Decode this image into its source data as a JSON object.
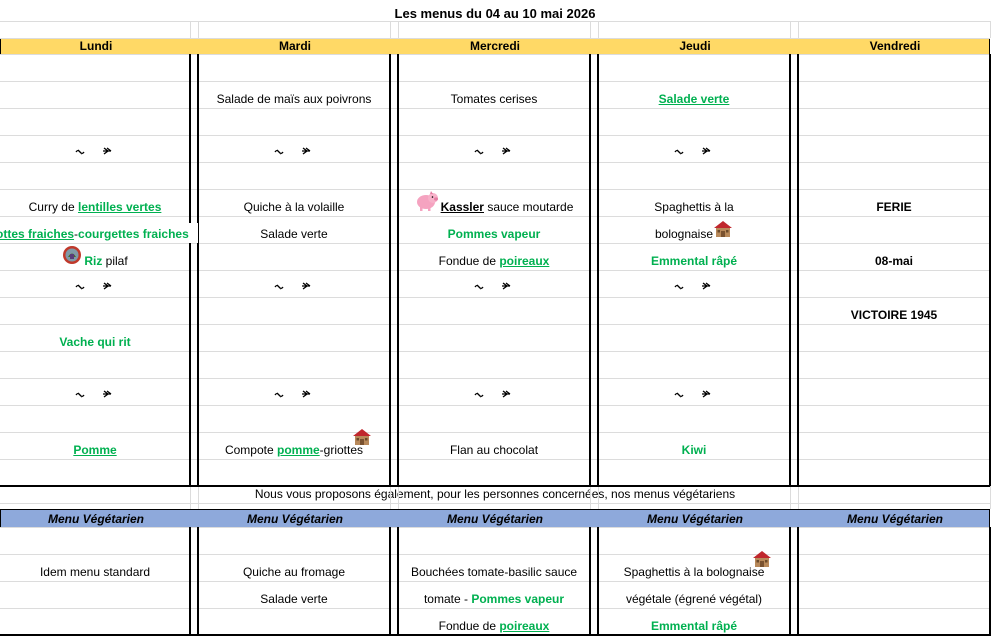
{
  "title": "Les menus du 04 au 10 mai 2026",
  "colors": {
    "header_yellow": "#ffd966",
    "header_blue": "#8ea9db",
    "green": "#00b050"
  },
  "days": [
    "Lundi",
    "Mardi",
    "Mercredi",
    "Jeudi",
    "Vendredi"
  ],
  "separator_icon": "wavy-dash-separator-icon",
  "main_menu": [
    {
      "day": "Lundi",
      "cells": [
        {
          "row": 3,
          "separator": true
        },
        {
          "row": 5,
          "segments": [
            {
              "text": "Curry de ",
              "style": "plain"
            },
            {
              "text": "lentilles vertes",
              "style": "greenu"
            }
          ]
        },
        {
          "row": 6,
          "wide": true,
          "segments": [
            {
              "text": "carottes fraiches",
              "style": "greenu"
            },
            {
              "text": "-",
              "style": "plain"
            },
            {
              "text": "courgettes fraiches",
              "style": "green"
            }
          ]
        },
        {
          "row": 7,
          "icon": "label-badge-icon",
          "segments": [
            {
              "text": "Riz",
              "style": "green"
            },
            {
              "text": " pilaf",
              "style": "plain"
            }
          ]
        },
        {
          "row": 8,
          "separator": true
        },
        {
          "row": 10,
          "segments": [
            {
              "text": "Vache qui rit",
              "style": "green"
            }
          ]
        },
        {
          "row": 12,
          "separator": true
        },
        {
          "row": 14,
          "segments": [
            {
              "text": "Pomme",
              "style": "greenu"
            }
          ]
        }
      ]
    },
    {
      "day": "Mardi",
      "cells": [
        {
          "row": 1,
          "segments": [
            {
              "text": "Salade de maïs aux poivrons",
              "style": "plain"
            }
          ]
        },
        {
          "row": 3,
          "separator": true
        },
        {
          "row": 5,
          "segments": [
            {
              "text": "Quiche à la volaille",
              "style": "plain"
            }
          ]
        },
        {
          "row": 6,
          "segments": [
            {
              "text": "Salade verte",
              "style": "plain"
            }
          ]
        },
        {
          "row": 8,
          "separator": true
        },
        {
          "row": 12,
          "separator": true
        },
        {
          "row": 14,
          "house_above": true,
          "segments": [
            {
              "text": "Compote ",
              "style": "plain"
            },
            {
              "text": "pomme",
              "style": "greenu"
            },
            {
              "text": "-griottes",
              "style": "plain"
            }
          ]
        }
      ]
    },
    {
      "day": "Mercredi",
      "cells": [
        {
          "row": 1,
          "segments": [
            {
              "text": "Tomates cerises",
              "style": "plain"
            }
          ]
        },
        {
          "row": 3,
          "separator": true
        },
        {
          "row": 5,
          "icon": "pig-icon",
          "segments": [
            {
              "text": "Kassler",
              "style": "bu"
            },
            {
              "text": " sauce moutarde",
              "style": "plain"
            }
          ]
        },
        {
          "row": 6,
          "segments": [
            {
              "text": "Pommes vapeur",
              "style": "green"
            }
          ]
        },
        {
          "row": 7,
          "segments": [
            {
              "text": "Fondue de ",
              "style": "plain"
            },
            {
              "text": "poireaux",
              "style": "greenu"
            }
          ]
        },
        {
          "row": 8,
          "separator": true
        },
        {
          "row": 12,
          "separator": true
        },
        {
          "row": 14,
          "segments": [
            {
              "text": "Flan au chocolat",
              "style": "plain"
            }
          ]
        }
      ]
    },
    {
      "day": "Jeudi",
      "cells": [
        {
          "row": 1,
          "segments": [
            {
              "text": "Salade verte",
              "style": "greenu"
            }
          ]
        },
        {
          "row": 3,
          "separator": true
        },
        {
          "row": 5,
          "segments": [
            {
              "text": "Spaghettis à la",
              "style": "plain"
            }
          ]
        },
        {
          "row": 6,
          "icon_after": "house-icon",
          "segments": [
            {
              "text": "bolognaise",
              "style": "plain"
            }
          ]
        },
        {
          "row": 7,
          "segments": [
            {
              "text": "Emmental râpé",
              "style": "green"
            }
          ]
        },
        {
          "row": 8,
          "separator": true
        },
        {
          "row": 12,
          "separator": true
        },
        {
          "row": 14,
          "segments": [
            {
              "text": "Kiwi",
              "style": "green"
            }
          ]
        }
      ]
    },
    {
      "day": "Vendredi",
      "cells": [
        {
          "row": 5,
          "segments": [
            {
              "text": "FERIE",
              "style": "bold"
            }
          ]
        },
        {
          "row": 7,
          "segments": [
            {
              "text": "08-mai",
              "style": "bold"
            }
          ]
        },
        {
          "row": 9,
          "segments": [
            {
              "text": "VICTOIRE 1945",
              "style": "bold"
            }
          ]
        }
      ]
    }
  ],
  "note": "Nous vous proposons également, pour les personnes concernées, nos menus végétariens",
  "veg_header": "Menu Végétarien",
  "veg_menu": [
    {
      "day": "Lundi",
      "cells": [
        {
          "row": 1,
          "segments": [
            {
              "text": "Idem menu standard",
              "style": "plain"
            }
          ]
        }
      ]
    },
    {
      "day": "Mardi",
      "cells": [
        {
          "row": 1,
          "segments": [
            {
              "text": "Quiche au fromage",
              "style": "plain"
            }
          ]
        },
        {
          "row": 2,
          "segments": [
            {
              "text": "Salade verte",
              "style": "plain"
            }
          ]
        }
      ]
    },
    {
      "day": "Mercredi",
      "cells": [
        {
          "row": 1,
          "segments": [
            {
              "text": "Bouchées tomate-basilic sauce",
              "style": "plain"
            }
          ]
        },
        {
          "row": 2,
          "segments": [
            {
              "text": "tomate - ",
              "style": "plain"
            },
            {
              "text": "Pommes vapeur",
              "style": "green"
            }
          ]
        },
        {
          "row": 3,
          "segments": [
            {
              "text": "Fondue de ",
              "style": "plain"
            },
            {
              "text": "poireaux",
              "style": "greenu"
            }
          ]
        }
      ]
    },
    {
      "day": "Jeudi",
      "cells": [
        {
          "row": 1,
          "house_above": true,
          "segments": [
            {
              "text": "Spaghettis à la bolognaise",
              "style": "plain"
            }
          ]
        },
        {
          "row": 2,
          "segments": [
            {
              "text": "végétale (égrené végétal)",
              "style": "plain"
            }
          ]
        },
        {
          "row": 3,
          "segments": [
            {
              "text": "Emmental râpé",
              "style": "green"
            }
          ]
        }
      ]
    },
    {
      "day": "Vendredi",
      "cells": []
    }
  ]
}
